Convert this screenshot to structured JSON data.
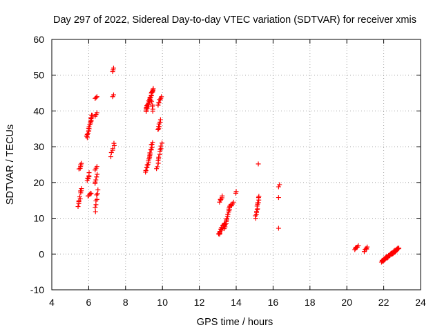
{
  "chart_data": {
    "type": "scatter",
    "title": "Day 297 of 2022, Sidereal Day-to-day VTEC variation (SDTVAR) for receiver xmis",
    "xlabel": "GPS time / hours",
    "ylabel": "SDTVAR / TECUs",
    "xlim": [
      4,
      24
    ],
    "ylim": [
      -10,
      60
    ],
    "xticks": [
      4,
      6,
      8,
      10,
      12,
      14,
      16,
      18,
      20,
      22,
      24
    ],
    "yticks": [
      -10,
      0,
      10,
      20,
      30,
      40,
      50,
      60
    ],
    "xtick_labels": [
      "4",
      "6",
      "8",
      "10",
      "12",
      "14",
      "16",
      "18",
      "20",
      "22",
      "24"
    ],
    "ytick_labels": [
      "-10",
      "0",
      "10",
      "20",
      "30",
      "40",
      "50",
      "60"
    ],
    "grid": true,
    "marker": "+",
    "series": [
      {
        "name": "SDTVAR",
        "color": "#ff0000",
        "segments": [
          {
            "x": [
              5.5,
              5.6
            ],
            "y": [
              23.5,
              25.5
            ],
            "n": 6
          },
          {
            "x": [
              5.45,
              5.6
            ],
            "y": [
              13.5,
              18.5
            ],
            "n": 10
          },
          {
            "x": [
              5.9,
              6.05
            ],
            "y": [
              20.5,
              22.5
            ],
            "n": 6
          },
          {
            "x": [
              5.9,
              6.2
            ],
            "y": [
              32.5,
              39.0
            ],
            "n": 22
          },
          {
            "x": [
              5.95,
              6.15
            ],
            "y": [
              16.0,
              17.0
            ],
            "n": 5
          },
          {
            "x": [
              6.35,
              6.45
            ],
            "y": [
              43.5,
              44.0
            ],
            "n": 3
          },
          {
            "x": [
              6.35,
              6.45
            ],
            "y": [
              38.5,
              39.5
            ],
            "n": 3
          },
          {
            "x": [
              6.35,
              6.45
            ],
            "y": [
              23.5,
              24.5
            ],
            "n": 3
          },
          {
            "x": [
              6.35,
              6.45
            ],
            "y": [
              19.5,
              22.0
            ],
            "n": 5
          },
          {
            "x": [
              6.35,
              6.5
            ],
            "y": [
              12.0,
              18.0
            ],
            "n": 8
          },
          {
            "x": [
              7.3,
              7.35
            ],
            "y": [
              51.0,
              52.0
            ],
            "n": 3
          },
          {
            "x": [
              7.3,
              7.35
            ],
            "y": [
              44.0,
              44.5
            ],
            "n": 2
          },
          {
            "x": [
              7.2,
              7.4
            ],
            "y": [
              27.5,
              31.0
            ],
            "n": 6
          },
          {
            "x": [
              9.1,
              9.5
            ],
            "y": [
              40.0,
              46.0
            ],
            "n": 30
          },
          {
            "x": [
              9.5,
              9.4
            ],
            "y": [
              40.0,
              43.0
            ],
            "n": 6
          },
          {
            "x": [
              9.1,
              9.45
            ],
            "y": [
              22.8,
              31.0
            ],
            "n": 24
          },
          {
            "x": [
              9.75,
              9.95
            ],
            "y": [
              41.5,
              44.0
            ],
            "n": 8
          },
          {
            "x": [
              9.75,
              9.9
            ],
            "y": [
              34.5,
              37.5
            ],
            "n": 8
          },
          {
            "x": [
              9.7,
              9.95
            ],
            "y": [
              24.0,
              31.0
            ],
            "n": 12
          },
          {
            "x": [
              13.1,
              13.25
            ],
            "y": [
              14.5,
              16.0
            ],
            "n": 6
          },
          {
            "x": [
              13.05,
              13.35
            ],
            "y": [
              5.5,
              8.5
            ],
            "n": 16
          },
          {
            "x": [
              13.35,
              13.7
            ],
            "y": [
              7.0,
              14.0
            ],
            "n": 22
          },
          {
            "x": [
              13.75,
              13.85
            ],
            "y": [
              13.5,
              14.5
            ],
            "n": 3
          },
          {
            "x": [
              13.98,
              14.0
            ],
            "y": [
              17.0,
              17.5
            ],
            "n": 2
          },
          {
            "x": [
              15.2,
              15.2
            ],
            "y": [
              25.2,
              25.2
            ],
            "n": 1
          },
          {
            "x": [
              15.05,
              15.25
            ],
            "y": [
              10.0,
              16.0
            ],
            "n": 14
          },
          {
            "x": [
              16.3,
              16.35
            ],
            "y": [
              18.8,
              19.4
            ],
            "n": 2
          },
          {
            "x": [
              16.3,
              16.3
            ],
            "y": [
              15.8,
              15.8
            ],
            "n": 1
          },
          {
            "x": [
              16.3,
              16.3
            ],
            "y": [
              7.2,
              7.2
            ],
            "n": 1
          },
          {
            "x": [
              20.45,
              20.6
            ],
            "y": [
              1.0,
              2.5
            ],
            "n": 6
          },
          {
            "x": [
              20.95,
              21.1
            ],
            "y": [
              0.8,
              2.0
            ],
            "n": 5
          },
          {
            "x": [
              21.9,
              22.8
            ],
            "y": [
              -2.0,
              1.5
            ],
            "n": 60
          }
        ]
      }
    ]
  }
}
